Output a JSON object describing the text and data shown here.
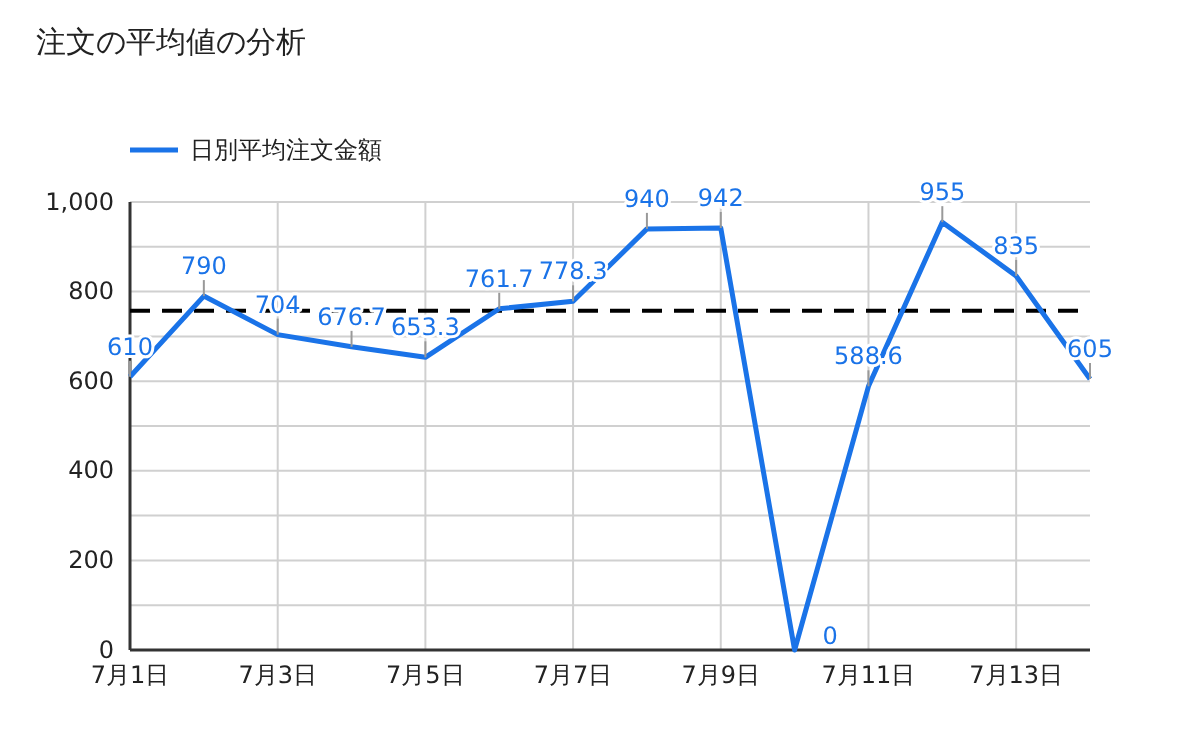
{
  "chart_data": {
    "type": "line",
    "title": "注文の平均値の分析",
    "categories": [
      "7月1日",
      null,
      "7月3日",
      null,
      "7月5日",
      null,
      "7月7日",
      null,
      "7月9日",
      null,
      "7月11日",
      null,
      "7月13日",
      null
    ],
    "series": [
      {
        "name": "日別平均注文金額",
        "color": "#1a73e8",
        "values": [
          610,
          790,
          704,
          676.7,
          653.3,
          761.7,
          778.3,
          940,
          942,
          0,
          588.6,
          955,
          835,
          605
        ]
      }
    ],
    "ylim": [
      0,
      1000
    ],
    "yticks": [
      0,
      {
        "value": 100,
        "label": null
      },
      200,
      {
        "value": 300,
        "label": null
      },
      400,
      {
        "value": 500,
        "label": null
      },
      600,
      {
        "value": 700,
        "label": null
      },
      800,
      {
        "value": 900,
        "label": null
      },
      {
        "value": 1000,
        "label": "1,000"
      }
    ],
    "ref_lines": [
      {
        "axis": "y",
        "value": 757,
        "color": "#000000",
        "line_style": "dashed"
      }
    ],
    "grid": true,
    "legend": "top left",
    "data_labels": true,
    "marker": "none",
    "line_style": "solid"
  }
}
